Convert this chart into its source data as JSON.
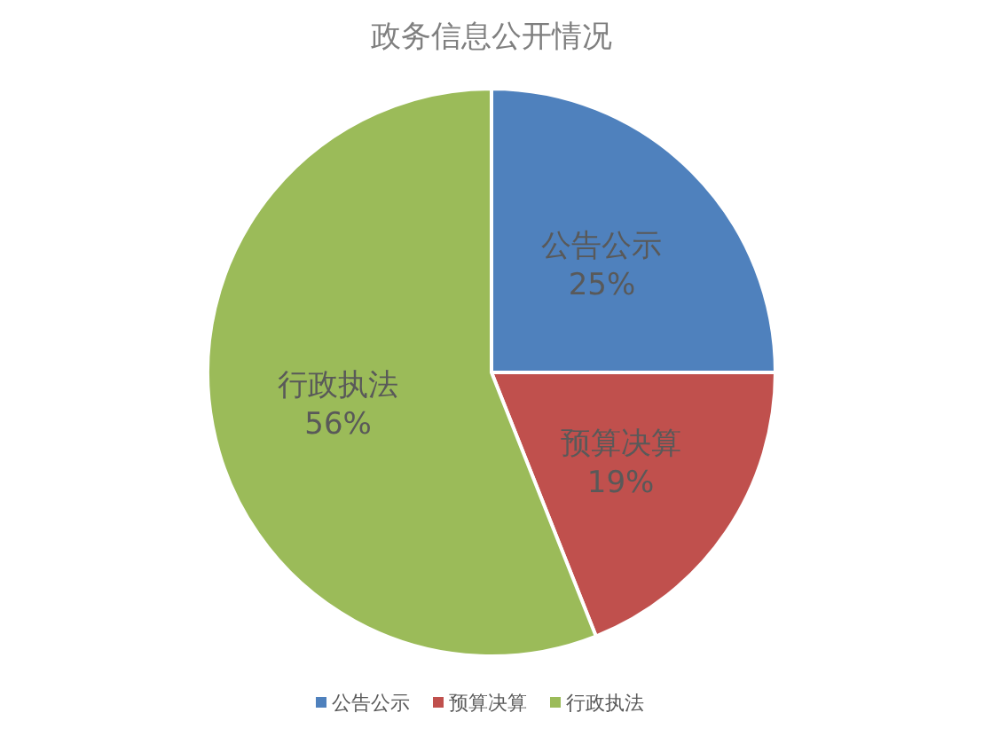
{
  "chart_data": {
    "type": "pie",
    "title": "政务信息公开情况",
    "categories": [
      "公告公示",
      "预算决算",
      "行政执法"
    ],
    "values": [
      25,
      19,
      56
    ],
    "value_labels": [
      "25%",
      "19%",
      "56%"
    ],
    "colors": [
      "#4f81bd",
      "#c0504d",
      "#9bbb59"
    ],
    "legend": "bottom"
  }
}
